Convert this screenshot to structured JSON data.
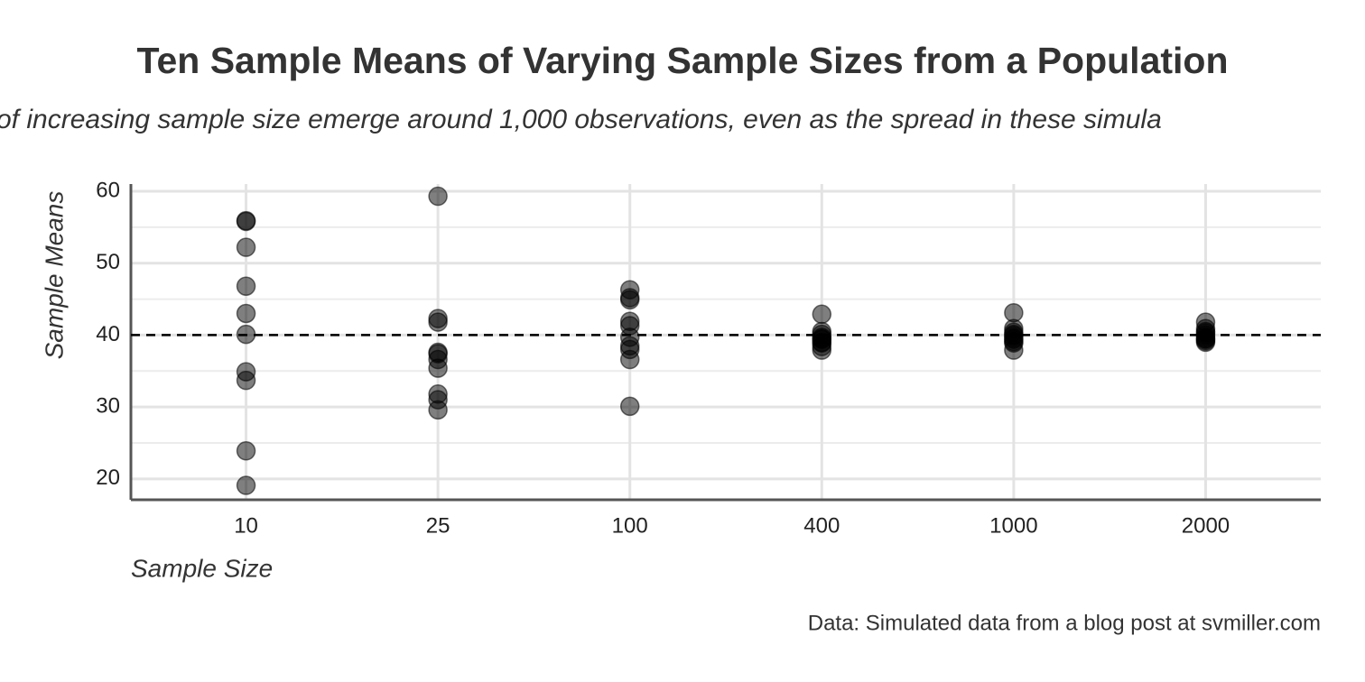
{
  "chart_data": {
    "type": "strip",
    "title": "Ten Sample Means of Varying Sample Sizes from a Population",
    "subtitle": "of increasing sample size emerge around 1,000 observations, even as the spread in these simula",
    "x_label": "Sample Size",
    "y_label": "Sample Means",
    "caption": "Data: Simulated data from a blog post at svmiller.com",
    "categories": [
      "10",
      "25",
      "100",
      "400",
      "1000",
      "2000"
    ],
    "values": [
      [
        55.9,
        55.8,
        52.2,
        46.8,
        43.0,
        40.1,
        34.9,
        33.7,
        23.9,
        19.1
      ],
      [
        59.3,
        42.3,
        41.8,
        37.6,
        37.4,
        36.6,
        35.4,
        31.8,
        31.0,
        29.6
      ],
      [
        46.3,
        45.2,
        44.9,
        41.9,
        41.3,
        39.7,
        38.5,
        38.0,
        36.6,
        30.1
      ],
      [
        42.9,
        40.5,
        40.1,
        39.7,
        39.5,
        39.4,
        39.0,
        38.9,
        38.4,
        37.9
      ],
      [
        43.1,
        40.9,
        40.4,
        40.1,
        39.9,
        39.6,
        39.4,
        39.1,
        38.9,
        37.9
      ],
      [
        41.8,
        40.9,
        40.5,
        40.3,
        40.0,
        39.7,
        39.5,
        39.4,
        39.2,
        39.0
      ]
    ],
    "color": "#000000",
    "reference_line": 40,
    "ylim": [
      17.1,
      61
    ],
    "yticks": [
      20,
      30,
      40,
      50,
      60
    ],
    "minor_yticks": [
      25,
      35,
      45,
      55
    ],
    "grid": true
  }
}
